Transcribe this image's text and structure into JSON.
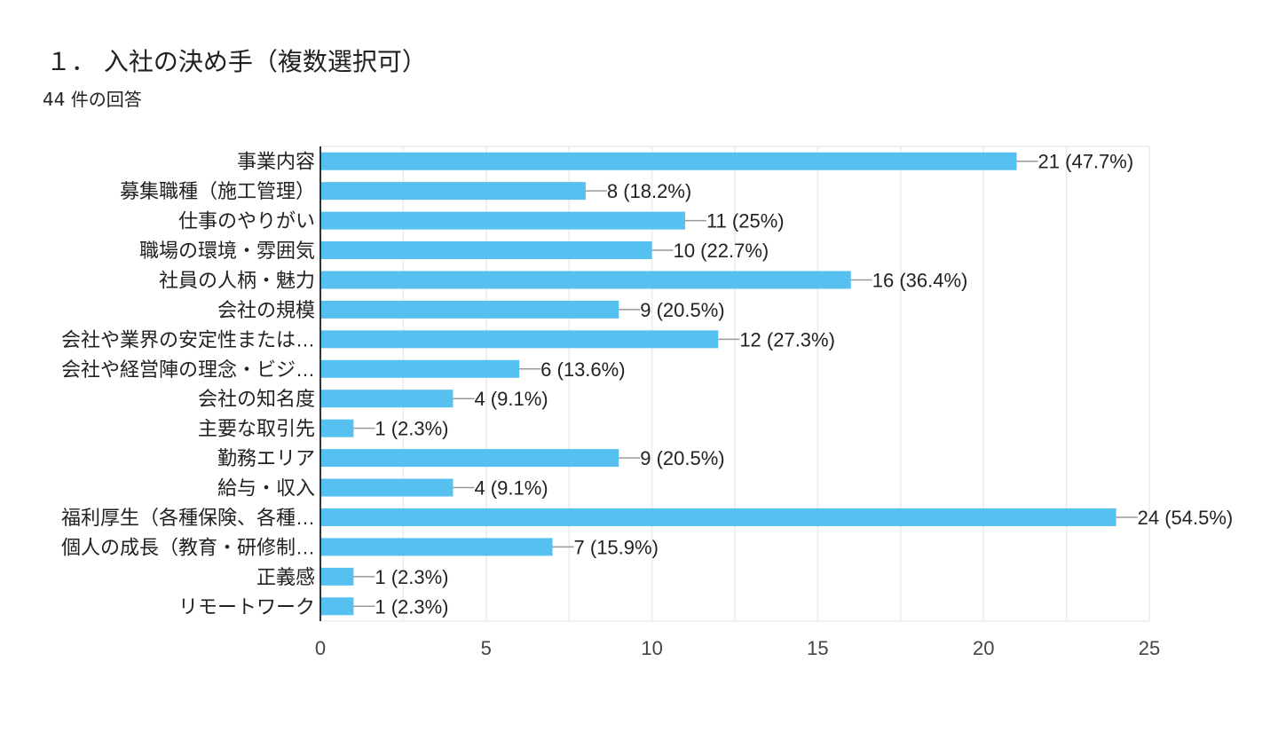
{
  "header": {
    "title": "１． 入社の決め手（複数選択可）",
    "response_count": "44 件の回答"
  },
  "colors": {
    "bar": "#56c1f0",
    "grid": "#ebebeb",
    "axis": "#333333",
    "leader": "#999999"
  },
  "chart_data": {
    "type": "bar",
    "orientation": "horizontal",
    "title": "１． 入社の決め手（複数選択可）",
    "xlabel": "",
    "ylabel": "",
    "xlim": [
      0,
      25
    ],
    "xticks": [
      0,
      5,
      10,
      15,
      20,
      25
    ],
    "grid": true,
    "categories": [
      "事業内容",
      "募集職種（施工管理）",
      "仕事のやりがい",
      "職場の環境・雰囲気",
      "社員の人柄・魅力",
      "会社の規模",
      "会社や業界の安定性または…",
      "会社や経営陣の理念・ビジ…",
      "会社の知名度",
      "主要な取引先",
      "勤務エリア",
      "給与・収入",
      "福利厚生（各種保険、各種…",
      "個人の成長（教育・研修制…",
      "正義感",
      "リモートワーク"
    ],
    "values": [
      21,
      8,
      11,
      10,
      16,
      9,
      12,
      6,
      4,
      1,
      9,
      4,
      24,
      7,
      1,
      1
    ],
    "data_labels": [
      "21 (47.7%)",
      "8 (18.2%)",
      "11 (25%)",
      "10 (22.7%)",
      "16 (36.4%)",
      "9 (20.5%)",
      "12 (27.3%)",
      "6 (13.6%)",
      "4 (9.1%)",
      "1 (2.3%)",
      "9 (20.5%)",
      "4 (9.1%)",
      "24 (54.5%)",
      "7 (15.9%)",
      "1 (2.3%)",
      "1 (2.3%)"
    ]
  }
}
